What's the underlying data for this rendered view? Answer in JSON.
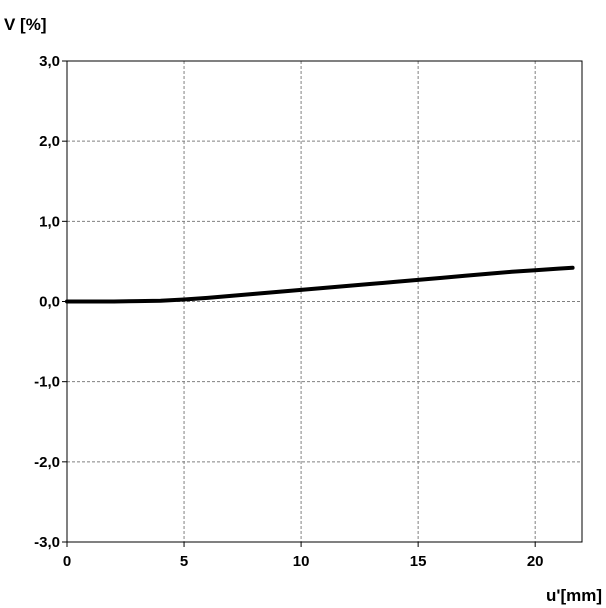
{
  "chart_data": {
    "type": "line",
    "ylabel": "V [%]",
    "xlabel": "u'[mm]",
    "xlim": [
      0,
      22
    ],
    "ylim": [
      -3,
      3
    ],
    "xticks": [
      0,
      5,
      10,
      15,
      20
    ],
    "xtick_labels": [
      "0",
      "5",
      "10",
      "15",
      "20"
    ],
    "yticks": [
      3,
      2,
      1,
      0,
      -1,
      -2,
      -3
    ],
    "ytick_labels": [
      "3,0",
      "2,0",
      "1,0",
      "0,0",
      "-1,0",
      "-2,0",
      "-3,0"
    ],
    "grid": true,
    "line_color": "#000000",
    "series": [
      {
        "x": [
          0,
          1,
          2,
          3,
          4,
          5,
          6,
          7,
          8,
          9,
          10,
          11,
          12,
          13,
          14,
          15,
          16,
          17,
          18,
          19,
          20,
          21,
          21.6
        ],
        "y": [
          0.0,
          0.0,
          0.0,
          0.005,
          0.01,
          0.025,
          0.045,
          0.07,
          0.095,
          0.12,
          0.145,
          0.17,
          0.195,
          0.22,
          0.245,
          0.27,
          0.295,
          0.32,
          0.345,
          0.37,
          0.39,
          0.41,
          0.42
        ]
      }
    ]
  }
}
